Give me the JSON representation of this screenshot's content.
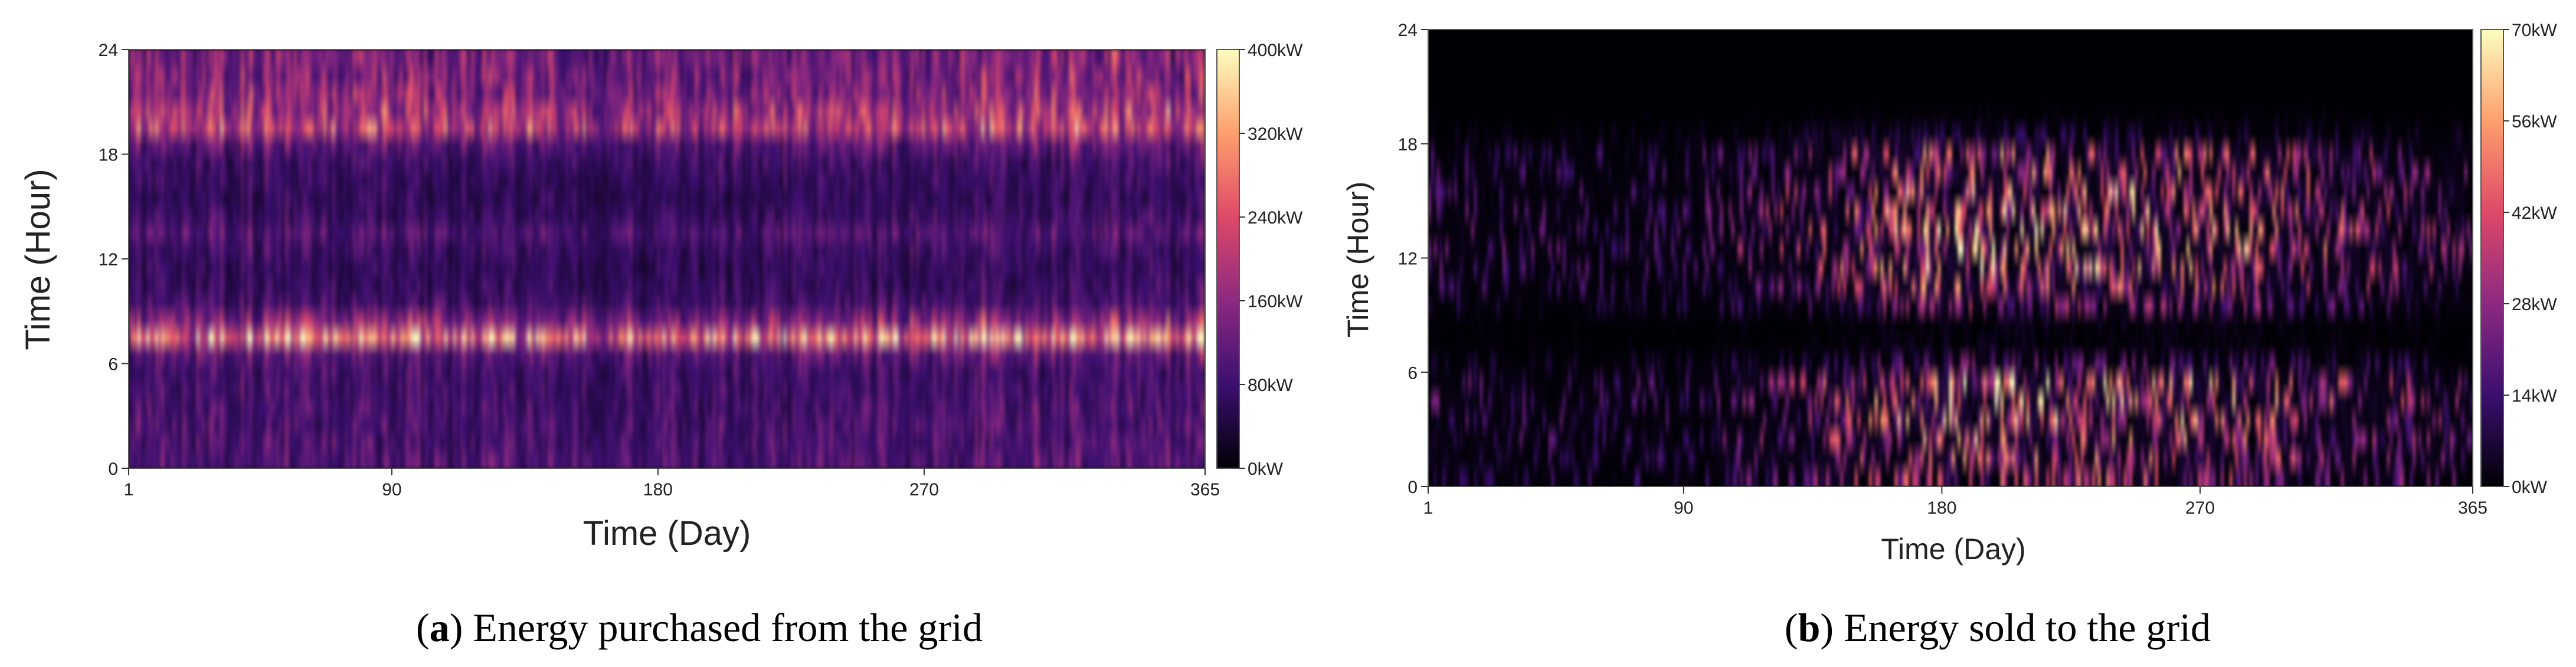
{
  "chart_data": [
    {
      "type": "heatmap",
      "caption_letter": "a",
      "caption_text": "Energy purchased from the grid",
      "xlabel": "Time (Day)",
      "ylabel": "Time (Hour)",
      "xlim": [
        1,
        365
      ],
      "ylim": [
        0,
        24
      ],
      "xticks": [
        "1",
        "90",
        "180",
        "270",
        "365"
      ],
      "yticks": [
        "0",
        "6",
        "12",
        "18",
        "24"
      ],
      "colorbar": {
        "unit": "kW",
        "min": 0,
        "max": 400,
        "ticks": [
          "0kW",
          "80kW",
          "160kW",
          "240kW",
          "320kW",
          "400kW"
        ],
        "colors": [
          "#000004",
          "#3b0f70",
          "#8c2981",
          "#de4968",
          "#fe9f6d",
          "#fcfdbf"
        ]
      },
      "hourly_profile_kW": [
        110,
        105,
        100,
        100,
        95,
        95,
        120,
        330,
        170,
        95,
        80,
        75,
        85,
        110,
        85,
        75,
        80,
        90,
        120,
        230,
        200,
        165,
        160,
        155
      ],
      "seasonal_factor": {
        "days": [
          1,
          90,
          180,
          270,
          365
        ],
        "factor": [
          1.0,
          0.9,
          0.8,
          0.9,
          1.0
        ]
      }
    },
    {
      "type": "heatmap",
      "caption_letter": "b",
      "caption_text": "Energy sold to the grid",
      "xlabel": "Time (Day)",
      "ylabel": "Time (Hour)",
      "xlim": [
        1,
        365
      ],
      "ylim": [
        0,
        24
      ],
      "xticks": [
        "1",
        "90",
        "180",
        "270",
        "365"
      ],
      "yticks": [
        "0",
        "6",
        "12",
        "18",
        "24"
      ],
      "colorbar": {
        "unit": "kW",
        "min": 0,
        "max": 70,
        "ticks": [
          "0kW",
          "14kW",
          "28kW",
          "42kW",
          "56kW",
          "70kW"
        ],
        "colors": [
          "#000004",
          "#3b0f70",
          "#8c2981",
          "#de4968",
          "#fe9f6d",
          "#fcfdbf"
        ]
      },
      "hourly_profile_kW": [
        22,
        24,
        26,
        28,
        30,
        30,
        12,
        2,
        2,
        16,
        24,
        28,
        30,
        30,
        28,
        28,
        26,
        24,
        6,
        1,
        0,
        0,
        0,
        0
      ],
      "seasonal_factor": {
        "days": [
          1,
          90,
          180,
          270,
          365
        ],
        "factor": [
          0.35,
          0.3,
          1.0,
          0.9,
          0.45
        ]
      }
    }
  ]
}
